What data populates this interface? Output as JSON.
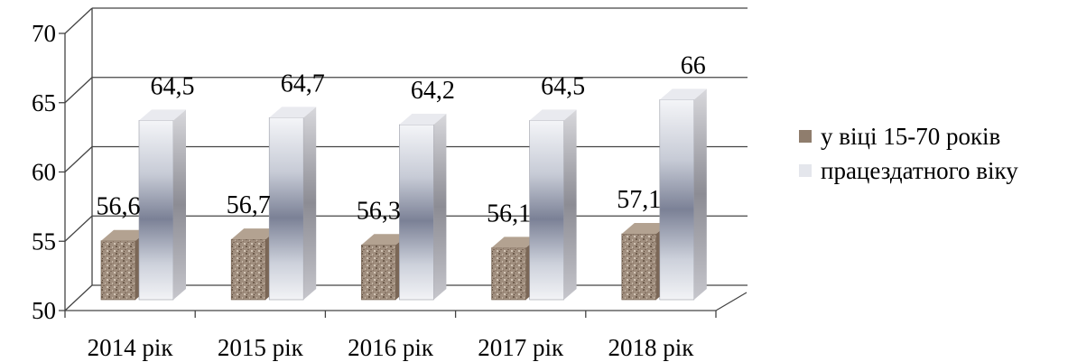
{
  "chart_data": {
    "type": "bar",
    "categories": [
      "2014 рік",
      "2015 рік",
      "2016 рік",
      "2017 рік",
      "2018 рік"
    ],
    "series": [
      {
        "name": "у віці 15-70 років",
        "values": [
          56.6,
          56.7,
          56.3,
          56.1,
          57.1
        ],
        "labels": [
          "56,6",
          "56,7",
          "56,3",
          "56,1",
          "57,1"
        ]
      },
      {
        "name": "працездатного віку",
        "values": [
          64.5,
          64.7,
          64.2,
          64.5,
          66
        ],
        "labels": [
          "64,5",
          "64,7",
          "64,2",
          "64,5",
          "66"
        ]
      }
    ],
    "ylim": [
      50,
      70
    ],
    "yticks": [
      "50",
      "55",
      "60",
      "65",
      "70"
    ],
    "grid": true,
    "legend_position": "right",
    "style": "3d-clustered-column"
  }
}
